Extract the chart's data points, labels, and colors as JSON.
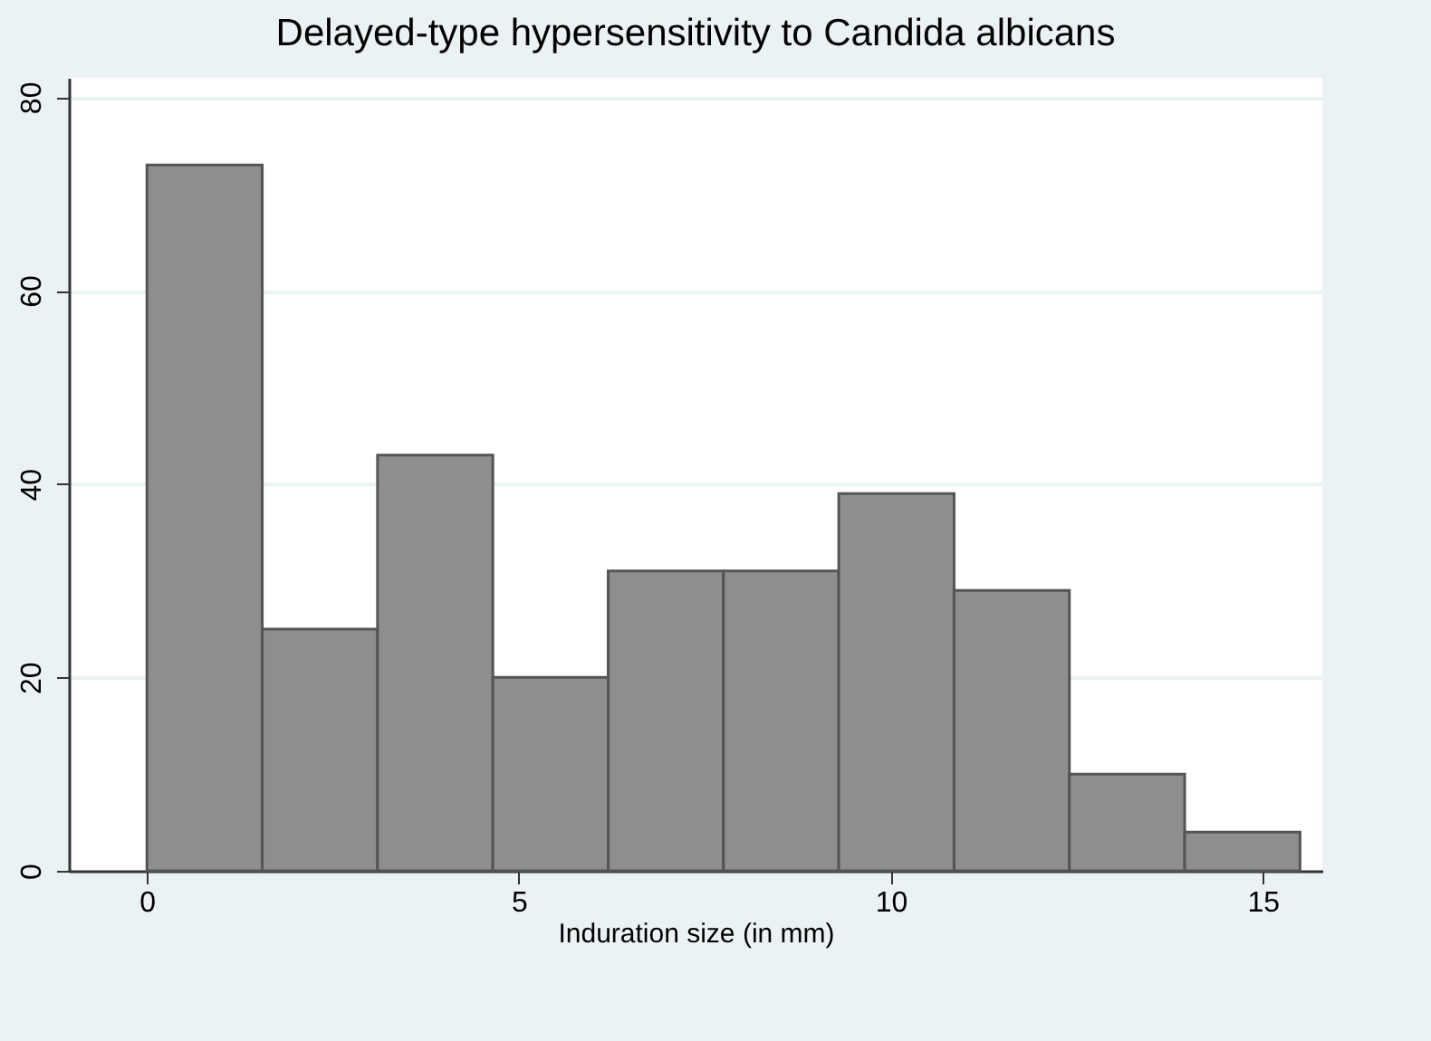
{
  "chart_data": {
    "type": "histogram",
    "title": "Delayed-type hypersensitivity to Candida albicans",
    "xlabel": "Induration size (in mm)",
    "bins": [
      0,
      1.55,
      3.1,
      4.65,
      6.2,
      7.75,
      9.3,
      10.85,
      12.4,
      13.95,
      15.5
    ],
    "values": [
      73,
      25,
      43,
      20,
      31,
      31,
      39,
      29,
      10,
      4
    ],
    "color": "#8e8e8e",
    "xlim": [
      -1.05,
      15.8
    ],
    "xticks": [
      0,
      5,
      10,
      15
    ],
    "ylim": [
      0,
      82
    ],
    "yticks": [
      0,
      20,
      40,
      60,
      80
    ],
    "grid": "y"
  }
}
